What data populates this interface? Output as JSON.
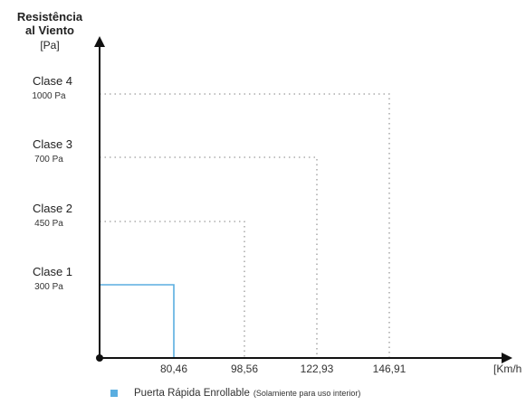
{
  "chart_data": {
    "type": "line",
    "ylabel_line1": "Resistência",
    "ylabel_line2": "al Viento",
    "ylabel_unit": "[Pa]",
    "xlabel": "[Km/h",
    "classes": [
      {
        "name": "Clase 1",
        "value_label": "300 Pa",
        "pressure": 300,
        "speed": 80.46
      },
      {
        "name": "Clase 2",
        "value_label": "450 Pa",
        "pressure": 450,
        "speed": 98.56
      },
      {
        "name": "Clase 3",
        "value_label": "700 Pa",
        "pressure": 700,
        "speed": 122.93
      },
      {
        "name": "Clase 4",
        "value_label": "1000 Pa",
        "pressure": 1000,
        "speed": 146.91
      }
    ],
    "x_ticks": [
      "80,46",
      "98,56",
      "122,93",
      "146,91"
    ],
    "series": [
      {
        "name": "Puerta Rápida Enrollable",
        "note": "(Solamiente para uso interior)",
        "class": "Clase 1",
        "speed": 80.46,
        "pressure": 300
      }
    ],
    "grid": false,
    "legend_position": "bottom",
    "colors": {
      "series": "#5aaee0",
      "axis": "#111111",
      "guide": "#9a9a9a"
    }
  }
}
